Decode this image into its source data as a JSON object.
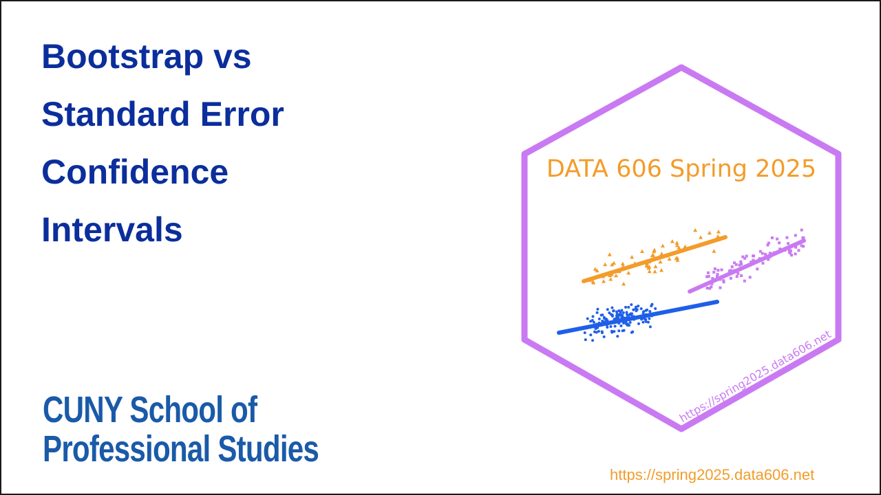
{
  "slide": {
    "title_lines": [
      "Bootstrap vs",
      "Standard Error",
      "Confidence",
      "Intervals"
    ],
    "logo_lines": [
      "CUNY School of",
      "Professional Studies"
    ],
    "footer_url": "https://spring2025.data606.net"
  },
  "hex_sticker": {
    "heading": "DATA 606 Spring 2025",
    "url": "https://spring2025.data606.net",
    "colors": {
      "hex_border": "#c97af2",
      "heading": "#f39c2a",
      "url": "#c97af2",
      "orange_series": "#f39c2a",
      "purple_series": "#c97af2",
      "blue_series": "#1f5fe8"
    },
    "decoration": "three scatter clouds (orange triangles, purple squares, blue dots) each with a trend line"
  }
}
